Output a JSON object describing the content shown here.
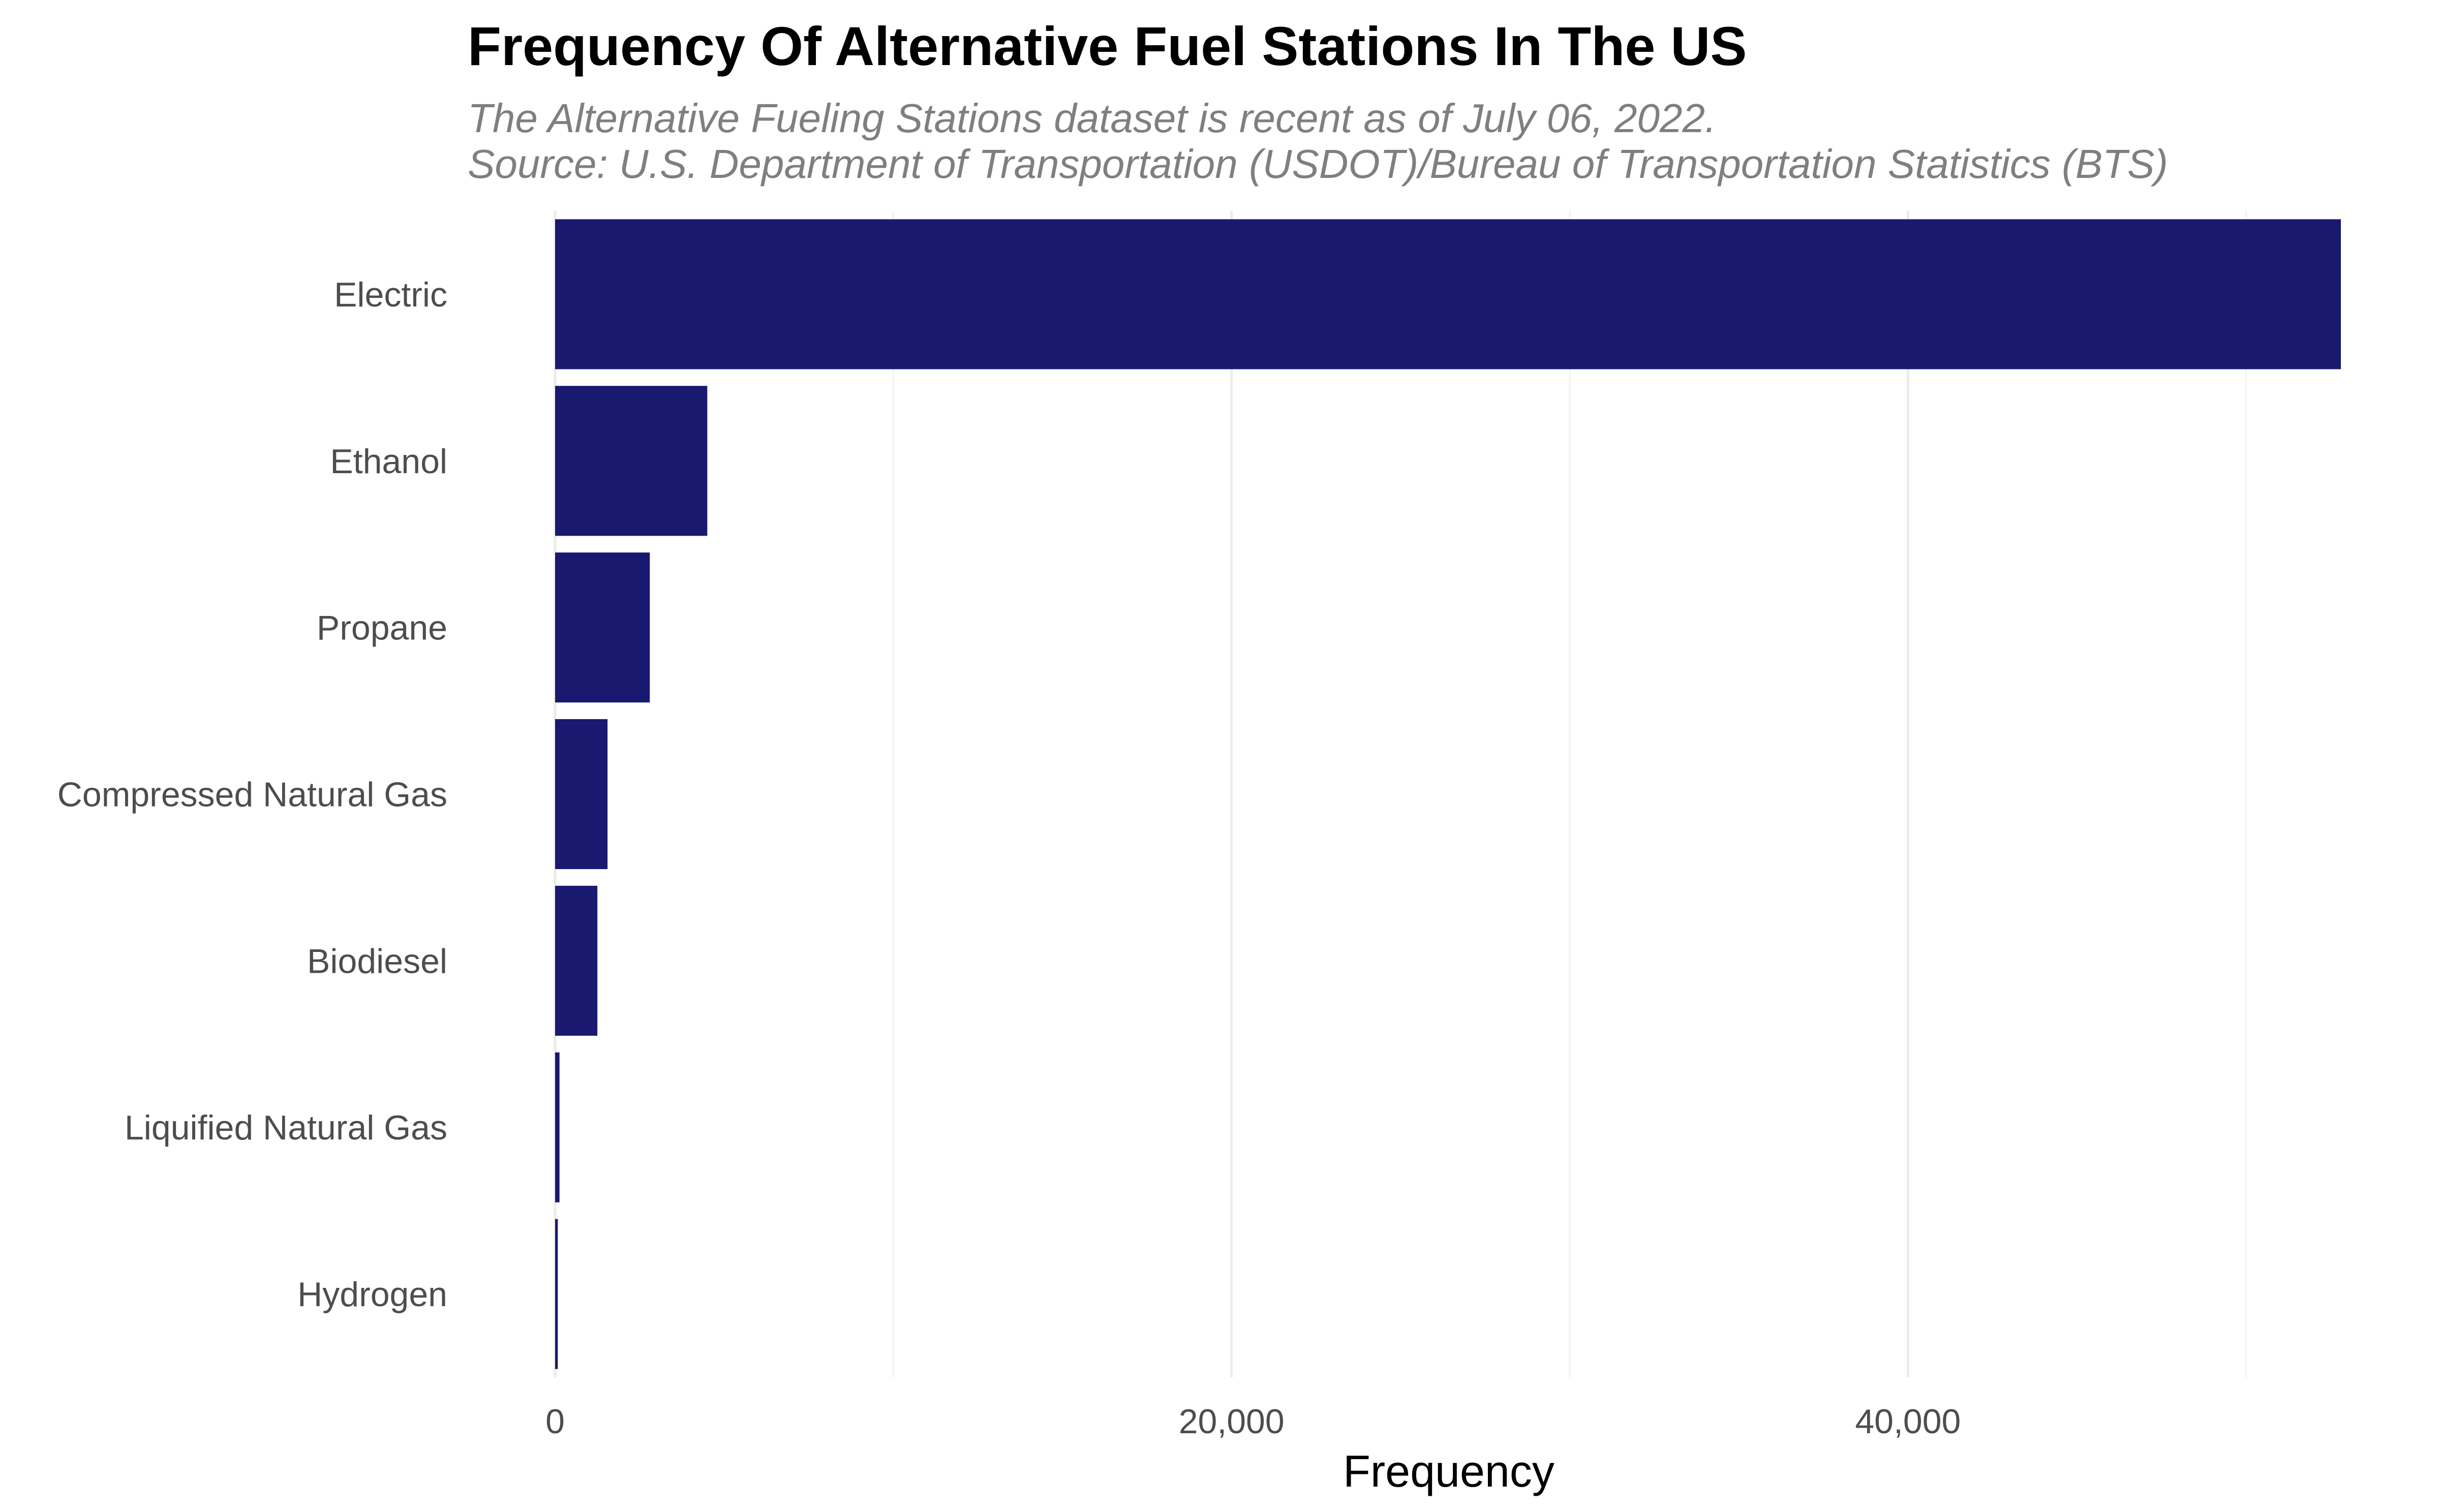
{
  "chart_data": {
    "type": "bar",
    "orientation": "horizontal",
    "title": "Frequency Of Alternative Fuel Stations In The US",
    "subtitle": [
      "The Alternative Fueling Stations dataset is recent as of July 06, 2022.",
      "Source: U.S. Department of Transportation (USDOT)/Bureau of Transportation Statistics (BTS)"
    ],
    "categories": [
      "Electric",
      "Ethanol",
      "Propane",
      "Compressed Natural Gas",
      "Biodiesel",
      "Liquified Natural Gas",
      "Hydrogen"
    ],
    "values": [
      52800,
      4500,
      2800,
      1550,
      1250,
      130,
      80
    ],
    "xlabel": "Frequency",
    "ylabel": "",
    "xlim": [
      0,
      52800
    ],
    "x_ticks": [
      0,
      20000,
      40000
    ],
    "x_tick_labels": [
      "0",
      "20,000",
      "40,000"
    ],
    "x_minor_ticks": [
      10000,
      30000,
      50000
    ],
    "grid": "vertical",
    "legend": "none",
    "bar_color": "#191970"
  }
}
